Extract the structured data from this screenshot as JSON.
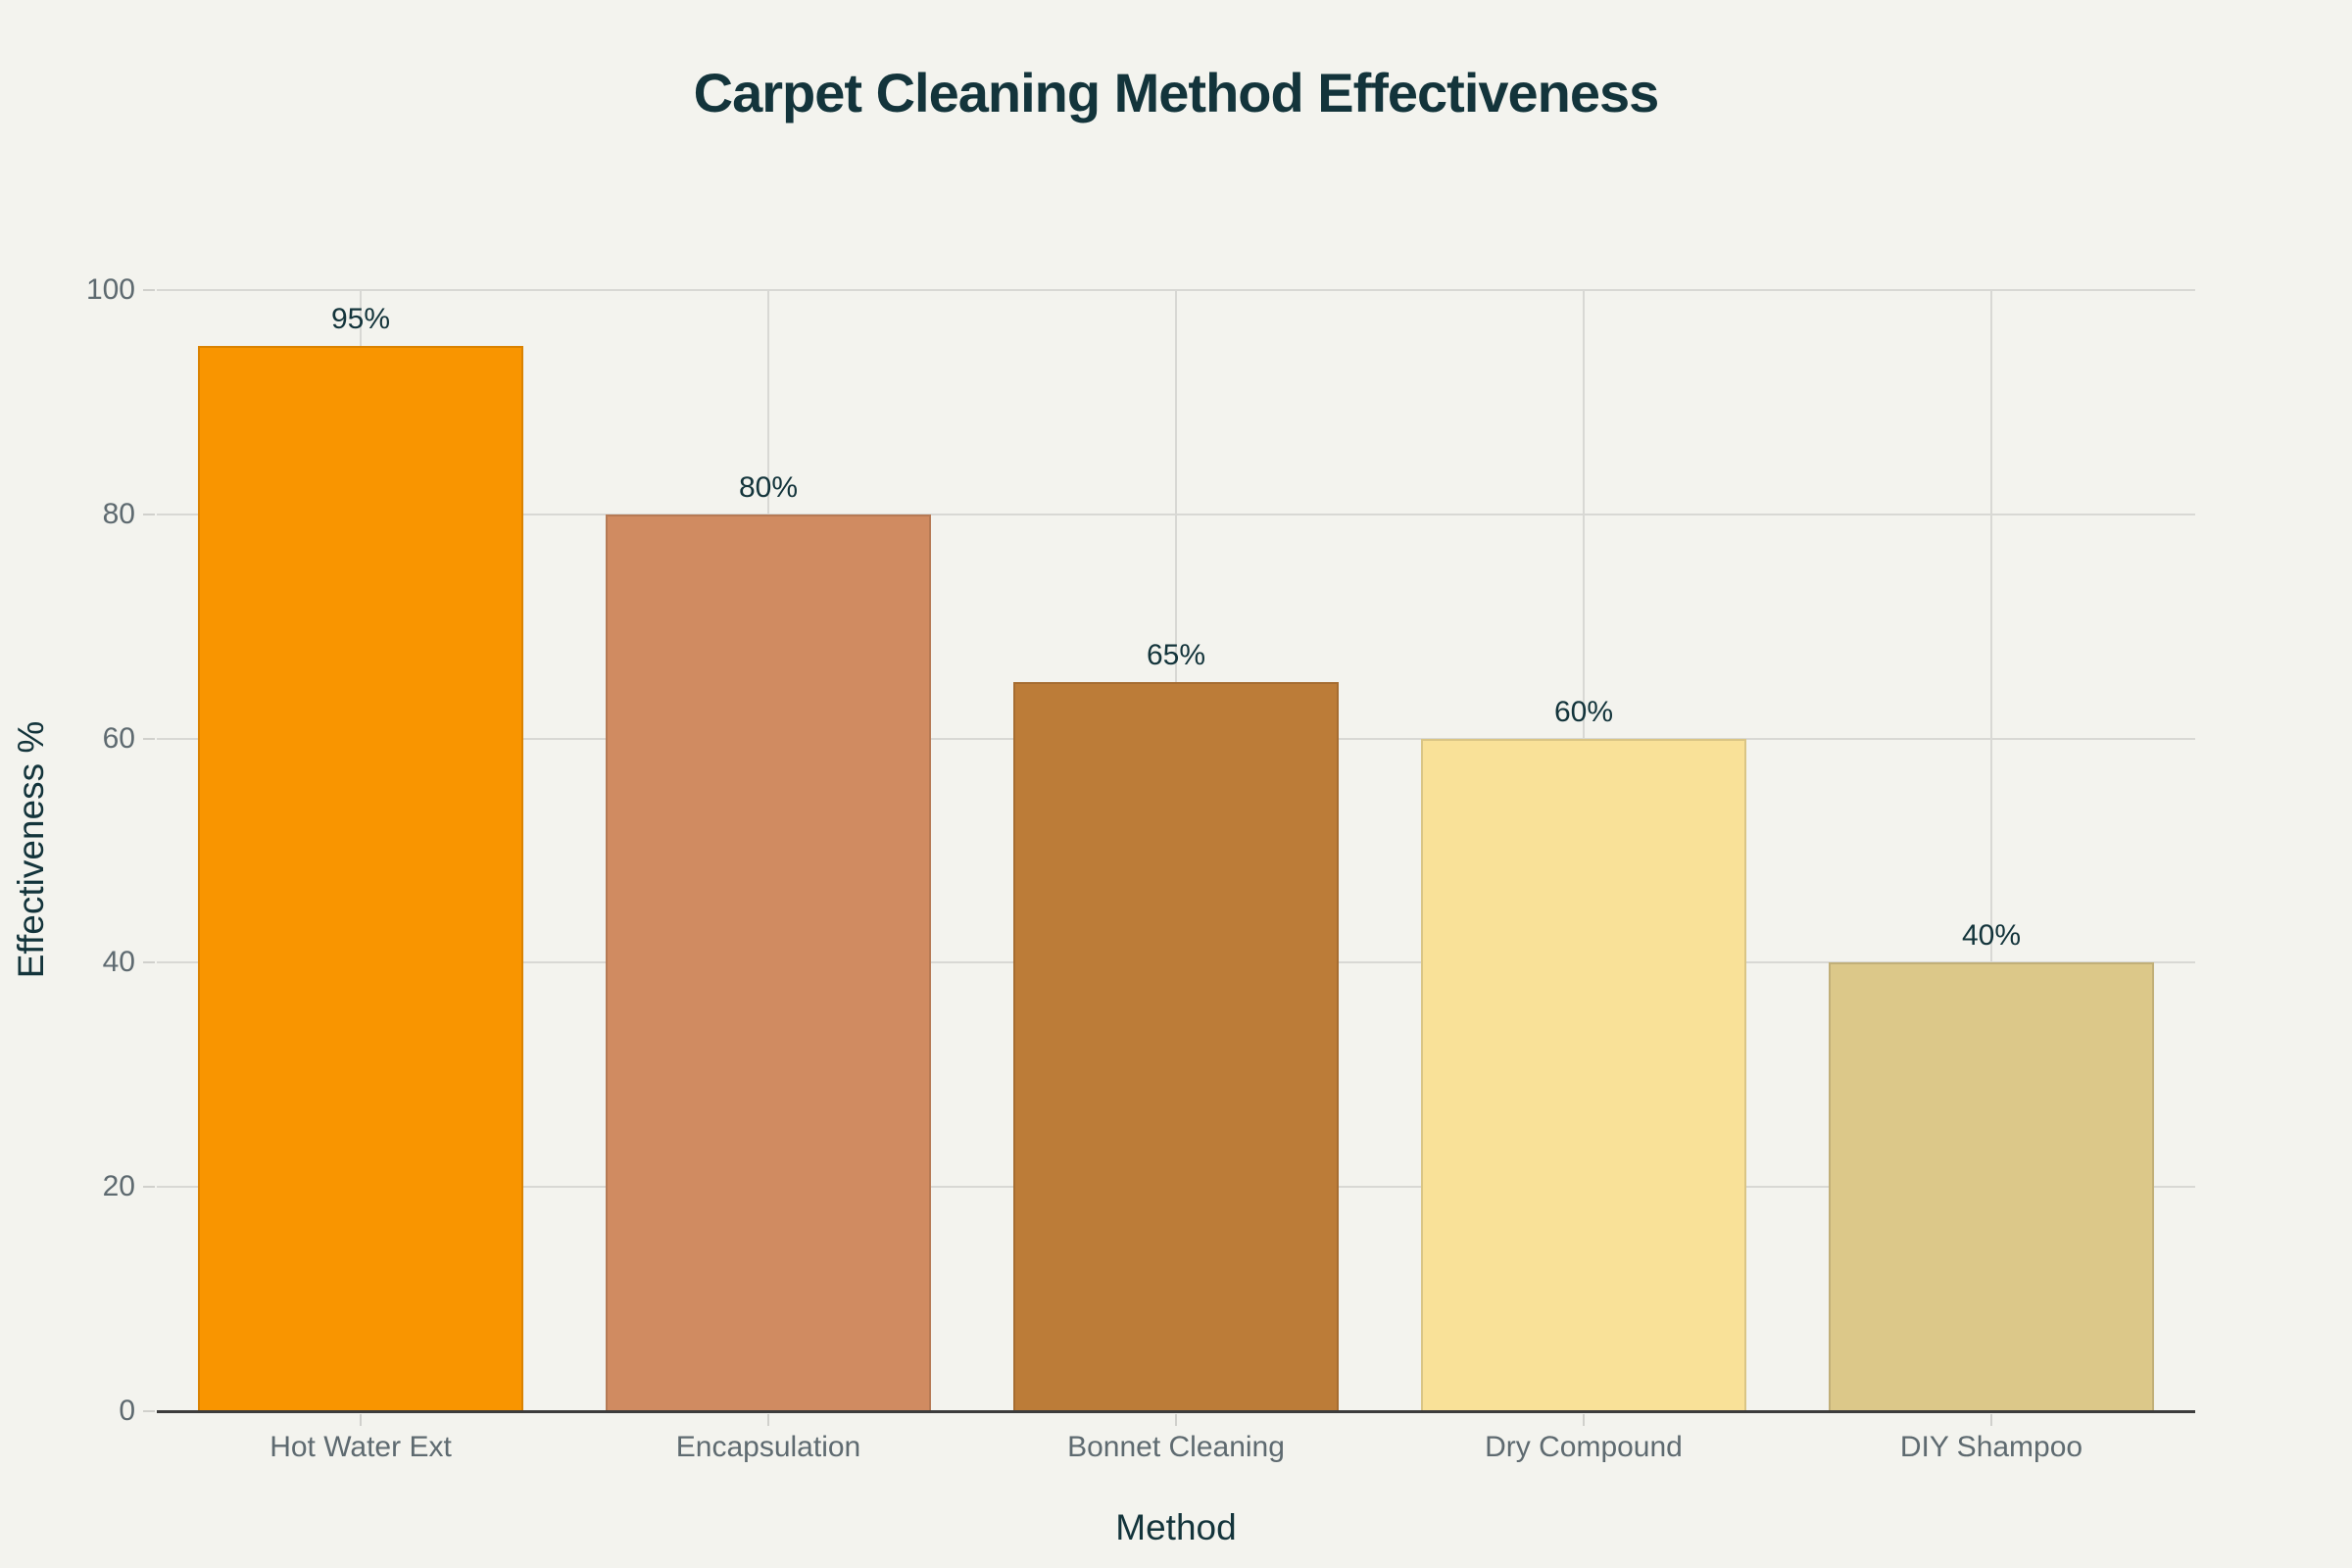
{
  "chart_data": {
    "type": "bar",
    "title": "Carpet Cleaning Method Effectiveness",
    "xlabel": "Method",
    "ylabel": "Effectiveness %",
    "categories": [
      "Hot Water Ext",
      "Encapsulation",
      "Bonnet Cleaning",
      "Dry Compound",
      "DIY Shampoo"
    ],
    "values": [
      95,
      80,
      65,
      60,
      40
    ],
    "value_labels": [
      "95%",
      "80%",
      "65%",
      "60%",
      "40%"
    ],
    "colors": [
      "#F99500",
      "#D08B61",
      "#BC7C38",
      "#F9E198",
      "#DCC889"
    ],
    "ylim": [
      0,
      100
    ],
    "yticks": [
      0,
      20,
      40,
      60,
      80,
      100
    ],
    "grid": true,
    "legend": null
  },
  "colors": {
    "background": "#F3F3EE",
    "title": "#13343B",
    "tick_text": "#5E6A70",
    "grid": "#D8D8D4"
  }
}
